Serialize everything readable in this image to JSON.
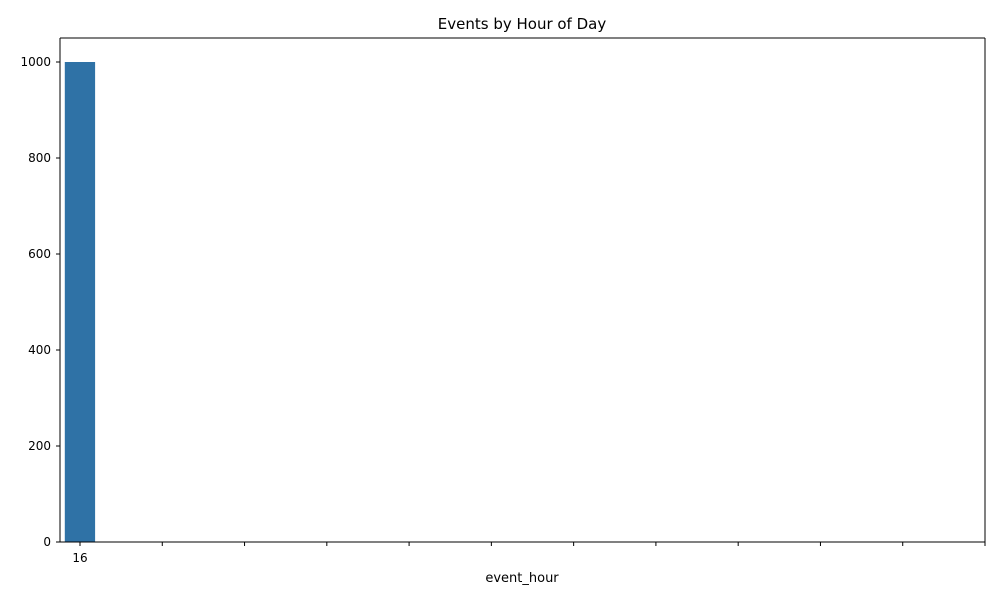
{
  "chart_data": {
    "type": "bar",
    "title": "Events by Hour of Day",
    "xlabel": "event_hour",
    "ylabel": "",
    "categories": [
      "16"
    ],
    "values": [
      1000
    ],
    "ylim": [
      0,
      1050
    ],
    "yticks": [
      0,
      200,
      400,
      600,
      800,
      1000
    ],
    "x_tick_count": 12,
    "bar_color": "#2f72a6",
    "grid": false,
    "legend": "none"
  }
}
